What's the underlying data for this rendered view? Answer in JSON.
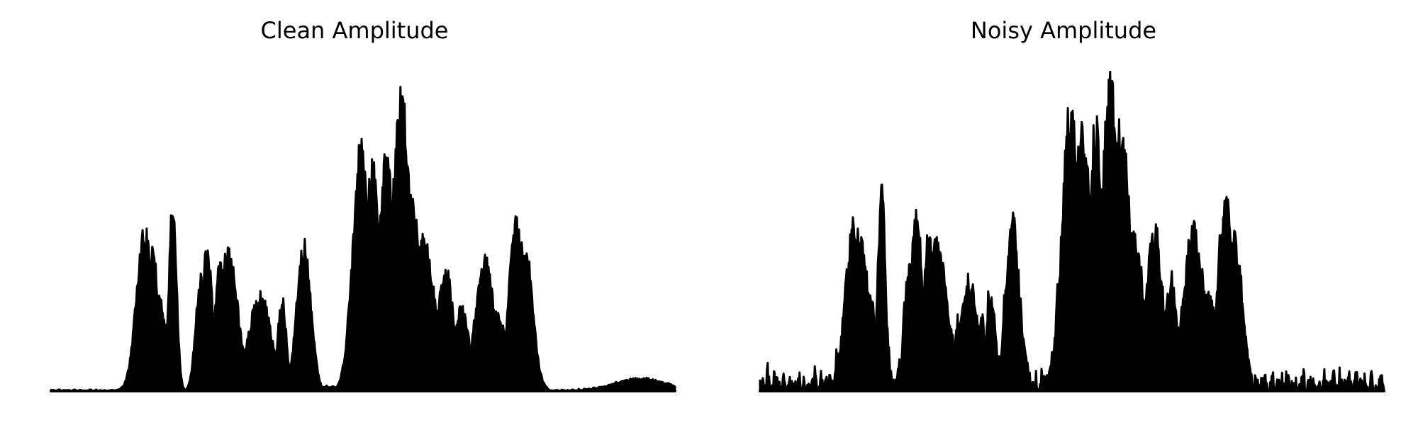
{
  "chart_data": [
    {
      "type": "area",
      "title": "Clean Amplitude",
      "xlabel": "",
      "ylabel": "",
      "xlim": [
        0,
        100
      ],
      "ylim": [
        0,
        1
      ],
      "axes_visible": false,
      "grid": false,
      "color": "#000000",
      "series": [
        {
          "peaks": [
            [
              15,
              1.3,
              0.52
            ],
            [
              16.3,
              0.9,
              0.46
            ],
            [
              17.5,
              1.0,
              0.3
            ],
            [
              19.5,
              0.6,
              0.62
            ],
            [
              23.2,
              0.4,
              0.2
            ],
            [
              24.4,
              0.2,
              0.05
            ],
            [
              25.0,
              0.5,
              0.16
            ],
            [
              24.0,
              0.8,
              0.38
            ],
            [
              25.0,
              0.9,
              0.45
            ],
            [
              27.1,
              0.8,
              0.42
            ],
            [
              28.3,
              1.6,
              0.46
            ],
            [
              29.7,
              0.6,
              0.2
            ],
            [
              33.5,
              1.8,
              0.31
            ],
            [
              35.2,
              1.2,
              0.13
            ],
            [
              37.0,
              0.7,
              0.3
            ],
            [
              40.5,
              1.1,
              0.48
            ],
            [
              41.4,
              0.8,
              0.28
            ],
            [
              46.0,
              6.0,
              0.012
            ],
            [
              49.8,
              1.4,
              0.82
            ],
            [
              51.5,
              1.6,
              0.72
            ],
            [
              53.8,
              1.2,
              0.78
            ],
            [
              56.2,
              1.5,
              0.96
            ],
            [
              58.0,
              1.4,
              0.62
            ],
            [
              59.7,
              1.8,
              0.49
            ],
            [
              63.2,
              1.3,
              0.4
            ],
            [
              65.8,
              1.2,
              0.27
            ],
            [
              69.5,
              1.5,
              0.43
            ],
            [
              71.5,
              1.5,
              0.25
            ],
            [
              74.7,
              1.3,
              0.55
            ],
            [
              76.2,
              1.1,
              0.44
            ],
            [
              77.8,
              0.8,
              0.08
            ],
            [
              94.5,
              4.0,
              0.04
            ]
          ],
          "noise_level": 0.006
        }
      ]
    },
    {
      "type": "area",
      "title": "Noisy Amplitude",
      "xlabel": "",
      "ylabel": "",
      "xlim": [
        0,
        100
      ],
      "ylim": [
        0,
        1
      ],
      "axes_visible": false,
      "grid": false,
      "color": "#000000",
      "series": [
        {
          "peaks": [
            [
              15,
              1.3,
              0.52
            ],
            [
              16.3,
              0.9,
              0.46
            ],
            [
              17.5,
              1.0,
              0.3
            ],
            [
              19.5,
              0.6,
              0.62
            ],
            [
              23.2,
              0.4,
              0.25
            ],
            [
              24.4,
              0.2,
              0.1
            ],
            [
              24.0,
              0.8,
              0.38
            ],
            [
              25.0,
              0.9,
              0.55
            ],
            [
              27.1,
              0.8,
              0.48
            ],
            [
              28.3,
              1.6,
              0.46
            ],
            [
              29.7,
              0.6,
              0.25
            ],
            [
              33.5,
              1.8,
              0.31
            ],
            [
              35.2,
              1.2,
              0.2
            ],
            [
              37.0,
              0.7,
              0.3
            ],
            [
              40.5,
              1.1,
              0.52
            ],
            [
              41.4,
              0.8,
              0.25
            ],
            [
              49.8,
              1.4,
              0.88
            ],
            [
              51.5,
              1.6,
              0.8
            ],
            [
              53.8,
              1.2,
              0.84
            ],
            [
              56.2,
              1.5,
              0.96
            ],
            [
              58.0,
              1.4,
              0.8
            ],
            [
              59.7,
              1.8,
              0.49
            ],
            [
              63.2,
              1.3,
              0.5
            ],
            [
              65.8,
              1.2,
              0.32
            ],
            [
              69.5,
              1.5,
              0.53
            ],
            [
              71.5,
              1.5,
              0.3
            ],
            [
              74.7,
              1.3,
              0.6
            ],
            [
              76.2,
              1.1,
              0.47
            ]
          ],
          "noise_level": 0.09
        }
      ]
    }
  ]
}
